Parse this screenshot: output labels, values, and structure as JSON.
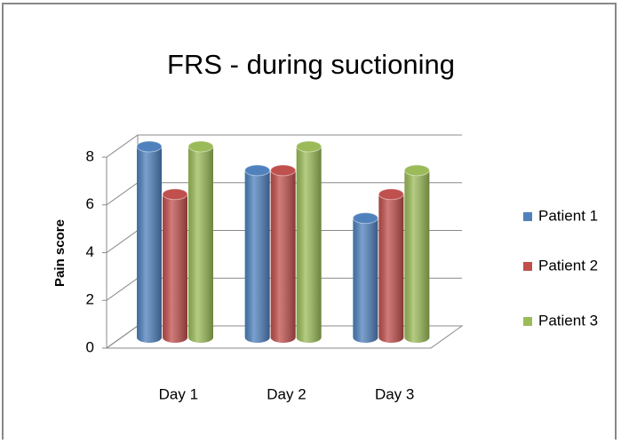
{
  "chart_data": {
    "type": "bar3d",
    "title": "FRS - during suctioning",
    "y_label": "Pain score",
    "categories": [
      "Day 1",
      "Day 2",
      "Day 3"
    ],
    "series": [
      {
        "name": "Patient 1",
        "color": "#4f81bd",
        "values": [
          8,
          7,
          5
        ]
      },
      {
        "name": "Patient 2",
        "color": "#c0504d",
        "values": [
          6,
          7,
          6
        ]
      },
      {
        "name": "Patient 3",
        "color": "#9bbb59",
        "values": [
          8,
          8,
          7
        ]
      }
    ],
    "ylim": [
      0,
      8
    ],
    "yticks": [
      0,
      2,
      4,
      6,
      8
    ],
    "grid": true,
    "legend": "right"
  }
}
